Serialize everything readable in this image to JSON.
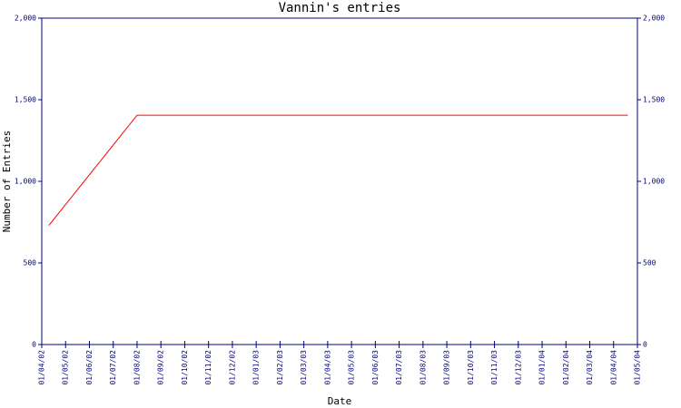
{
  "chart_data": {
    "type": "line",
    "title": "Vannin's entries",
    "xlabel": "Date",
    "ylabel": "Number of Entries",
    "xlim": [
      0,
      25
    ],
    "xticks": [
      {
        "value": 0,
        "label": "01/04/02"
      },
      {
        "value": 1,
        "label": "01/05/02"
      },
      {
        "value": 2,
        "label": "01/06/02"
      },
      {
        "value": 3,
        "label": "01/07/02"
      },
      {
        "value": 4,
        "label": "01/08/02"
      },
      {
        "value": 5,
        "label": "01/09/02"
      },
      {
        "value": 6,
        "label": "01/10/02"
      },
      {
        "value": 7,
        "label": "01/11/02"
      },
      {
        "value": 8,
        "label": "01/12/02"
      },
      {
        "value": 9,
        "label": "01/01/03"
      },
      {
        "value": 10,
        "label": "01/02/03"
      },
      {
        "value": 11,
        "label": "01/03/03"
      },
      {
        "value": 12,
        "label": "01/04/03"
      },
      {
        "value": 13,
        "label": "01/05/03"
      },
      {
        "value": 14,
        "label": "01/06/03"
      },
      {
        "value": 15,
        "label": "01/07/03"
      },
      {
        "value": 16,
        "label": "01/08/03"
      },
      {
        "value": 17,
        "label": "01/09/03"
      },
      {
        "value": 18,
        "label": "01/10/03"
      },
      {
        "value": 19,
        "label": "01/11/03"
      },
      {
        "value": 20,
        "label": "01/12/03"
      },
      {
        "value": 21,
        "label": "01/01/04"
      },
      {
        "value": 22,
        "label": "01/02/04"
      },
      {
        "value": 23,
        "label": "01/03/04"
      },
      {
        "value": 24,
        "label": "01/04/04"
      },
      {
        "value": 25,
        "label": "01/05/04"
      }
    ],
    "ylim": [
      0,
      2000
    ],
    "yticks": [
      0,
      500,
      {
        "value": 1000,
        "label": "1,000"
      },
      {
        "value": 1500,
        "label": "1,500"
      },
      {
        "value": 2000,
        "label": "2,000"
      }
    ],
    "axis_color": "#000080",
    "series": [
      {
        "color": "#ff0000",
        "x": [
          0.3,
          4,
          24.6
        ],
        "values": [
          730,
          1405,
          1405
        ]
      }
    ]
  }
}
